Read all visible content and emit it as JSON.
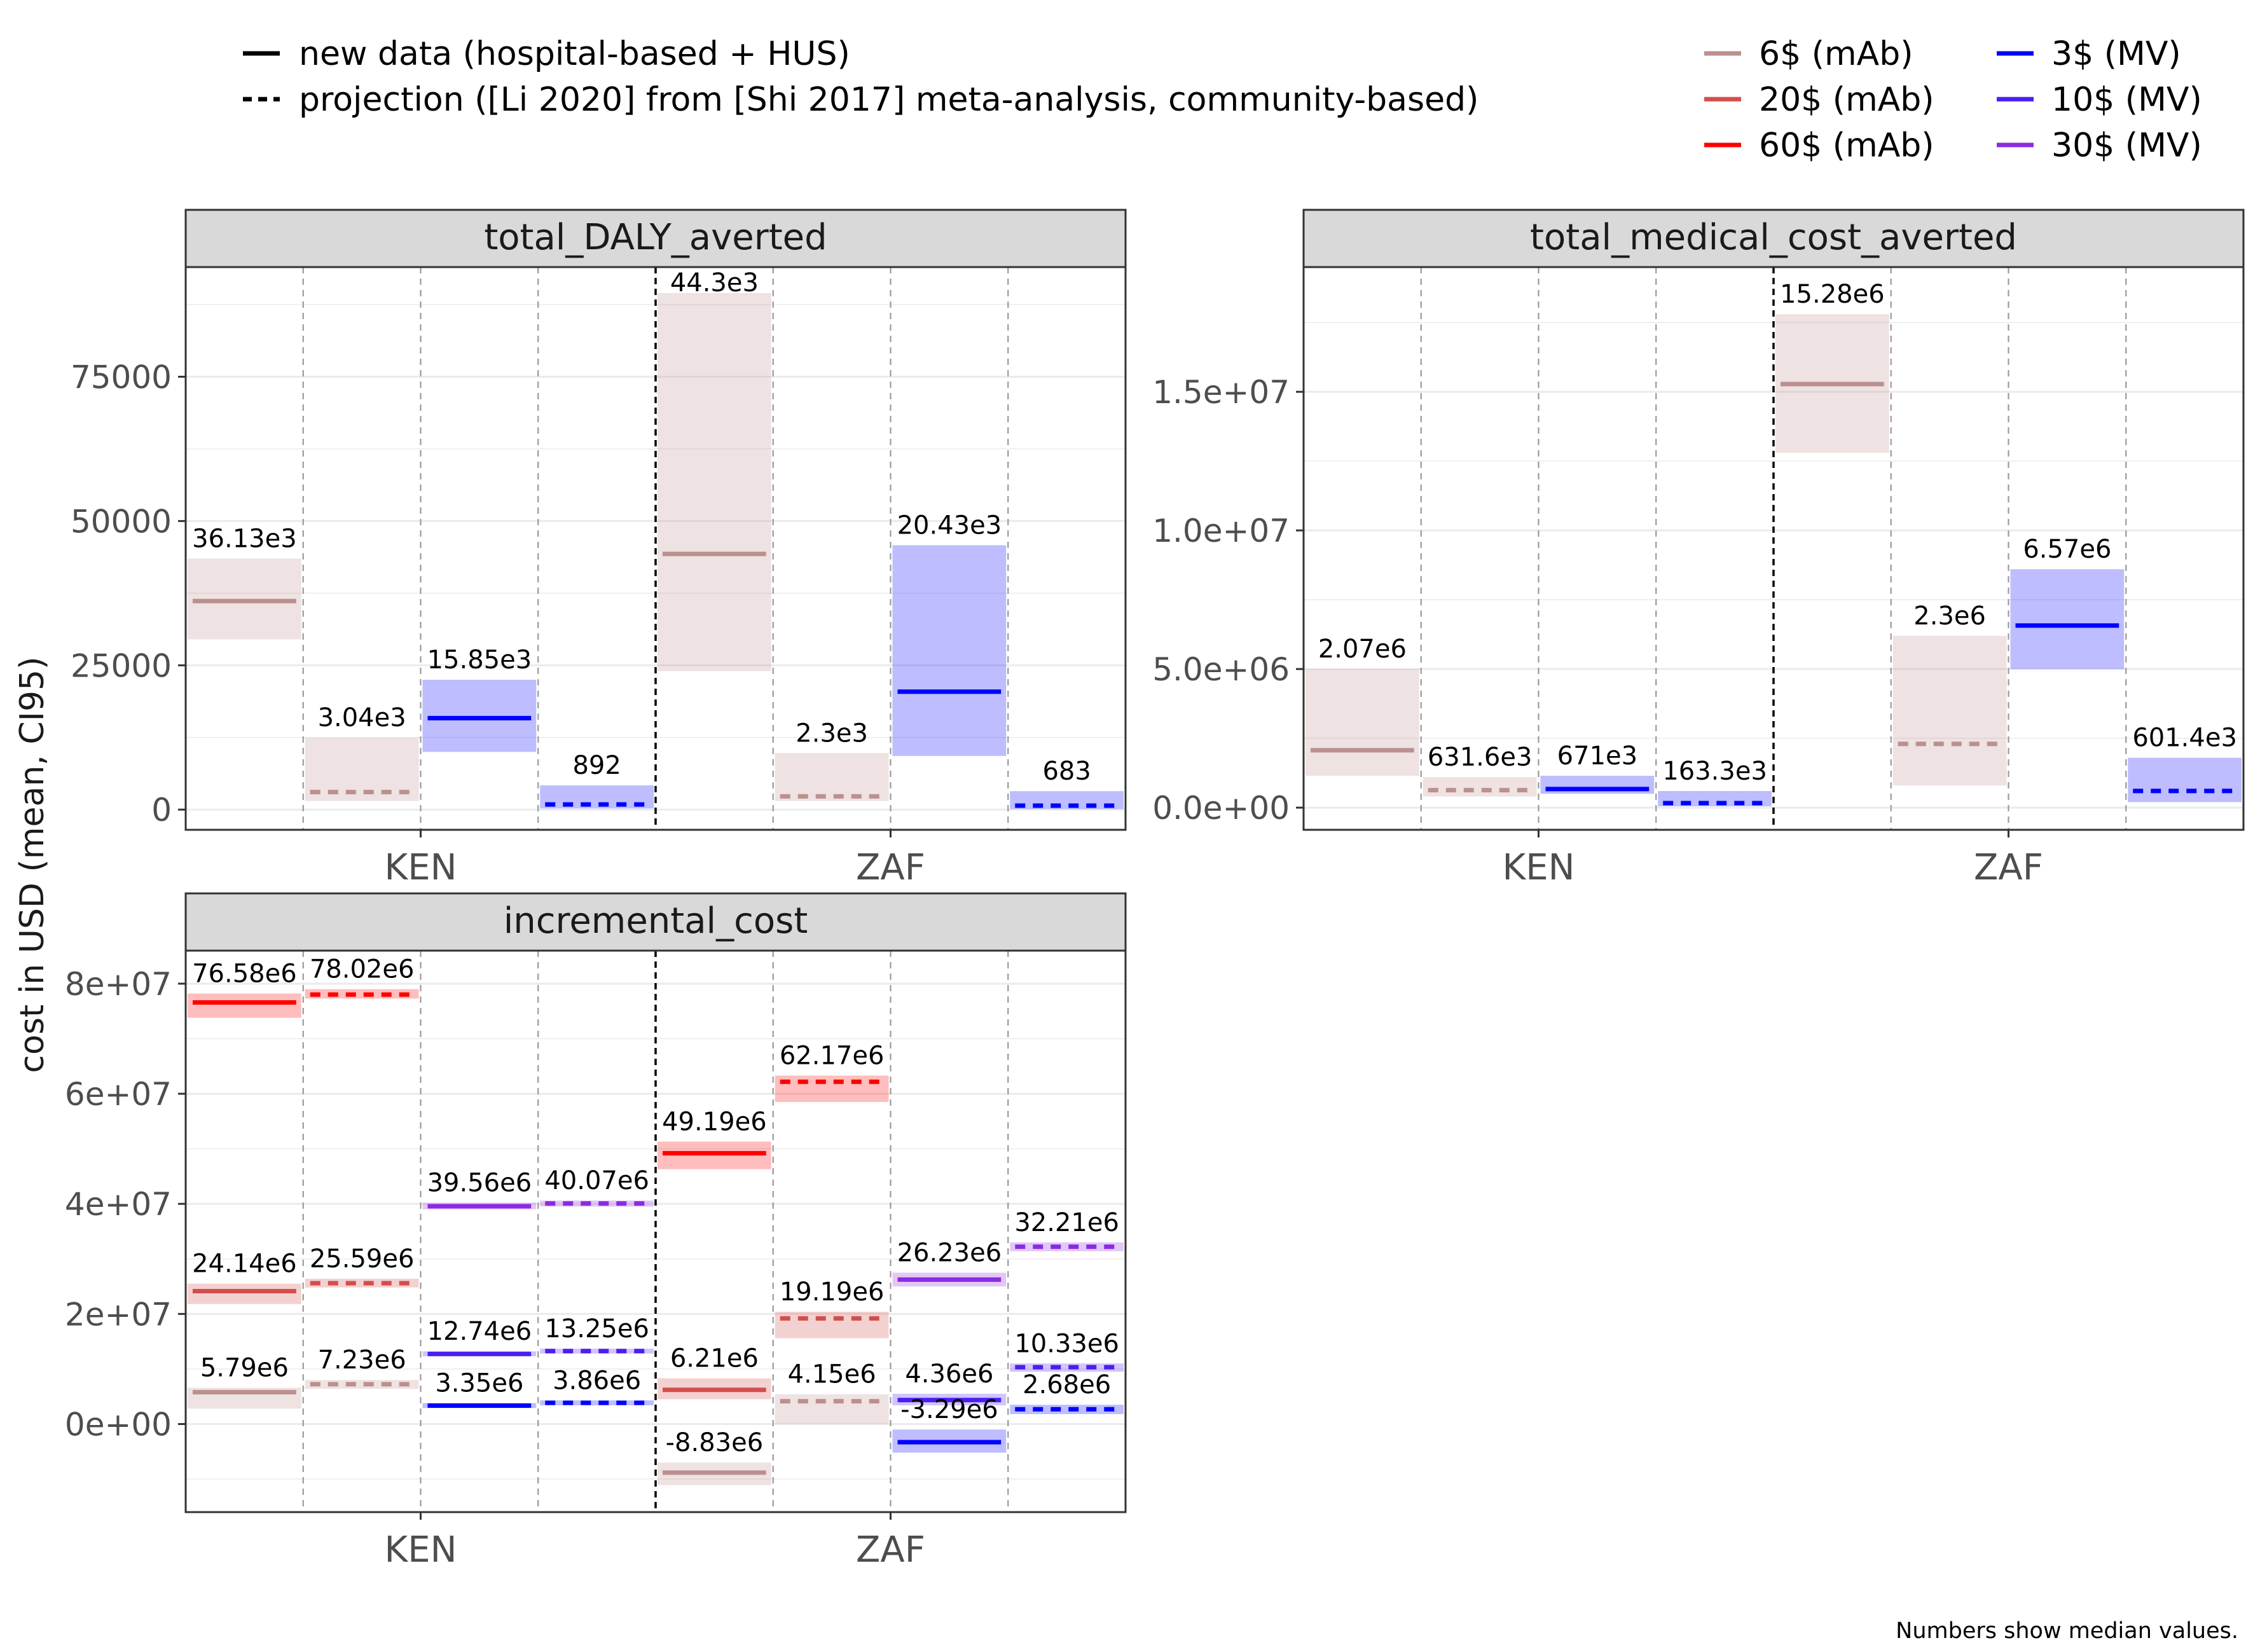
{
  "legend": {
    "linetypes": [
      {
        "label": "new data (hospital-based + HUS)",
        "dash": "solid"
      },
      {
        "label": "projection ([Li 2020] from [Shi 2017] meta-analysis, community-based)",
        "dash": "dashed"
      }
    ],
    "colors": [
      {
        "label": "6$ (mAb)",
        "color": "#bc8f8f"
      },
      {
        "label": "20$ (mAb)",
        "color": "#d44d4d"
      },
      {
        "label": "60$ (mAb)",
        "color": "#ff0000"
      },
      {
        "label": "3$ (MV)",
        "color": "#0000ff"
      },
      {
        "label": "10$ (MV)",
        "color": "#4a1ef0"
      },
      {
        "label": "30$ (MV)",
        "color": "#8a2be2"
      }
    ]
  },
  "ylabel": "cost in USD (mean, CI95)",
  "caption": "Numbers show median values.",
  "chart_data": [
    {
      "type": "crossbar",
      "title": "total_DALY_averted",
      "categories": [
        "KEN",
        "ZAF"
      ],
      "ylim": [
        -3500,
        94000
      ],
      "yticks": [
        0,
        25000,
        50000,
        75000
      ],
      "ytick_labels": [
        "0",
        "25000",
        "50000",
        "75000"
      ],
      "bars": [
        {
          "country": "KEN",
          "slot": 0,
          "color": "#bc8f8f",
          "dash": "solid",
          "mean": 36130,
          "lo": 29500,
          "hi": 43500,
          "label": "36.13e3"
        },
        {
          "country": "KEN",
          "slot": 1,
          "color": "#bc8f8f",
          "dash": "dashed",
          "mean": 3040,
          "lo": 1500,
          "hi": 12500,
          "label": "3.04e3"
        },
        {
          "country": "KEN",
          "slot": 2,
          "color": "#0000ff",
          "dash": "solid",
          "mean": 15850,
          "lo": 10000,
          "hi": 22500,
          "label": "15.85e3"
        },
        {
          "country": "KEN",
          "slot": 3,
          "color": "#0000ff",
          "dash": "dashed",
          "mean": 892,
          "lo": 200,
          "hi": 4200,
          "label": "892"
        },
        {
          "country": "ZAF",
          "slot": 0,
          "color": "#bc8f8f",
          "dash": "solid",
          "mean": 44300,
          "lo": 24000,
          "hi": 89500,
          "label": "44.3e3"
        },
        {
          "country": "ZAF",
          "slot": 1,
          "color": "#bc8f8f",
          "dash": "dashed",
          "mean": 2300,
          "lo": 1500,
          "hi": 9800,
          "label": "2.3e3"
        },
        {
          "country": "ZAF",
          "slot": 2,
          "color": "#0000ff",
          "dash": "solid",
          "mean": 20430,
          "lo": 9300,
          "hi": 45800,
          "label": "20.43e3"
        },
        {
          "country": "ZAF",
          "slot": 3,
          "color": "#0000ff",
          "dash": "dashed",
          "mean": 683,
          "lo": 100,
          "hi": 3200,
          "label": "683"
        }
      ]
    },
    {
      "type": "crossbar",
      "title": "total_medical_cost_averted",
      "categories": [
        "KEN",
        "ZAF"
      ],
      "ylim": [
        -800000,
        19500000
      ],
      "yticks": [
        0,
        5000000,
        10000000,
        15000000
      ],
      "ytick_labels": [
        "0.0e+00",
        "5.0e+06",
        "1.0e+07",
        "1.5e+07"
      ],
      "bars": [
        {
          "country": "KEN",
          "slot": 0,
          "color": "#bc8f8f",
          "dash": "solid",
          "mean": 2070000,
          "lo": 1150000,
          "hi": 5000000,
          "label": "2.07e6"
        },
        {
          "country": "KEN",
          "slot": 1,
          "color": "#bc8f8f",
          "dash": "dashed",
          "mean": 631600,
          "lo": 400000,
          "hi": 1100000,
          "label": "631.6e3"
        },
        {
          "country": "KEN",
          "slot": 2,
          "color": "#0000ff",
          "dash": "solid",
          "mean": 671000,
          "lo": 500000,
          "hi": 1150000,
          "label": "671e3"
        },
        {
          "country": "KEN",
          "slot": 3,
          "color": "#0000ff",
          "dash": "dashed",
          "mean": 163300,
          "lo": 50000,
          "hi": 600000,
          "label": "163.3e3"
        },
        {
          "country": "ZAF",
          "slot": 0,
          "color": "#bc8f8f",
          "dash": "solid",
          "mean": 15280000,
          "lo": 12800000,
          "hi": 17800000,
          "label": "15.28e6"
        },
        {
          "country": "ZAF",
          "slot": 1,
          "color": "#bc8f8f",
          "dash": "dashed",
          "mean": 2300000,
          "lo": 800000,
          "hi": 6200000,
          "label": "2.3e6"
        },
        {
          "country": "ZAF",
          "slot": 2,
          "color": "#0000ff",
          "dash": "solid",
          "mean": 6570000,
          "lo": 5000000,
          "hi": 8600000,
          "label": "6.57e6"
        },
        {
          "country": "ZAF",
          "slot": 3,
          "color": "#0000ff",
          "dash": "dashed",
          "mean": 601400,
          "lo": 200000,
          "hi": 1800000,
          "label": "601.4e3"
        }
      ]
    },
    {
      "type": "crossbar",
      "title": "incremental_cost",
      "categories": [
        "KEN",
        "ZAF"
      ],
      "ylim": [
        -16000000,
        86000000
      ],
      "yticks": [
        0,
        20000000,
        40000000,
        60000000,
        80000000
      ],
      "ytick_labels": [
        "0e+00",
        "2e+07",
        "4e+07",
        "6e+07",
        "8e+07"
      ],
      "bars": [
        {
          "country": "KEN",
          "slot": 0,
          "color": "#ff0000",
          "dash": "solid",
          "mean": 76580000,
          "lo": 73800000,
          "hi": 78200000,
          "label": "76.58e6"
        },
        {
          "country": "KEN",
          "slot": 1,
          "color": "#ff0000",
          "dash": "dashed",
          "mean": 78020000,
          "lo": 77300000,
          "hi": 79000000,
          "label": "78.02e6"
        },
        {
          "country": "KEN",
          "slot": 0,
          "color": "#d44d4d",
          "dash": "solid",
          "mean": 24140000,
          "lo": 21800000,
          "hi": 25500000,
          "label": "24.14e6"
        },
        {
          "country": "KEN",
          "slot": 1,
          "color": "#d44d4d",
          "dash": "dashed",
          "mean": 25590000,
          "lo": 24800000,
          "hi": 26400000,
          "label": "25.59e6"
        },
        {
          "country": "KEN",
          "slot": 0,
          "color": "#bc8f8f",
          "dash": "solid",
          "mean": 5790000,
          "lo": 2800000,
          "hi": 6600000,
          "label": "5.79e6"
        },
        {
          "country": "KEN",
          "slot": 1,
          "color": "#bc8f8f",
          "dash": "dashed",
          "mean": 7230000,
          "lo": 6400000,
          "hi": 8000000,
          "label": "7.23e6"
        },
        {
          "country": "KEN",
          "slot": 2,
          "color": "#8a2be2",
          "dash": "solid",
          "mean": 39560000,
          "lo": 39000000,
          "hi": 40200000,
          "label": "39.56e6"
        },
        {
          "country": "KEN",
          "slot": 3,
          "color": "#8a2be2",
          "dash": "dashed",
          "mean": 40070000,
          "lo": 39500000,
          "hi": 40600000,
          "label": "40.07e6"
        },
        {
          "country": "KEN",
          "slot": 2,
          "color": "#4a1ef0",
          "dash": "solid",
          "mean": 12740000,
          "lo": 12300000,
          "hi": 13200000,
          "label": "12.74e6"
        },
        {
          "country": "KEN",
          "slot": 3,
          "color": "#4a1ef0",
          "dash": "dashed",
          "mean": 13250000,
          "lo": 12800000,
          "hi": 13700000,
          "label": "13.25e6"
        },
        {
          "country": "KEN",
          "slot": 2,
          "color": "#0000ff",
          "dash": "solid",
          "mean": 3350000,
          "lo": 2900000,
          "hi": 3800000,
          "label": "3.35e6"
        },
        {
          "country": "KEN",
          "slot": 3,
          "color": "#0000ff",
          "dash": "dashed",
          "mean": 3860000,
          "lo": 3400000,
          "hi": 4300000,
          "label": "3.86e6"
        },
        {
          "country": "ZAF",
          "slot": 0,
          "color": "#ff0000",
          "dash": "solid",
          "mean": 49190000,
          "lo": 46300000,
          "hi": 51300000,
          "label": "49.19e6"
        },
        {
          "country": "ZAF",
          "slot": 1,
          "color": "#ff0000",
          "dash": "dashed",
          "mean": 62170000,
          "lo": 58500000,
          "hi": 63300000,
          "label": "62.17e6"
        },
        {
          "country": "ZAF",
          "slot": 0,
          "color": "#d44d4d",
          "dash": "solid",
          "mean": 6210000,
          "lo": 4500000,
          "hi": 8300000,
          "label": "6.21e6"
        },
        {
          "country": "ZAF",
          "slot": 1,
          "color": "#d44d4d",
          "dash": "dashed",
          "mean": 19190000,
          "lo": 15600000,
          "hi": 20400000,
          "label": "19.19e6"
        },
        {
          "country": "ZAF",
          "slot": 0,
          "color": "#bc8f8f",
          "dash": "solid",
          "mean": -8830000,
          "lo": -11100000,
          "hi": -7000000,
          "label": "-8.83e6"
        },
        {
          "country": "ZAF",
          "slot": 1,
          "color": "#bc8f8f",
          "dash": "dashed",
          "mean": 4150000,
          "lo": 0,
          "hi": 5400000,
          "label": "4.15e6"
        },
        {
          "country": "ZAF",
          "slot": 2,
          "color": "#8a2be2",
          "dash": "solid",
          "mean": 26230000,
          "lo": 25000000,
          "hi": 27500000,
          "label": "26.23e6"
        },
        {
          "country": "ZAF",
          "slot": 3,
          "color": "#8a2be2",
          "dash": "dashed",
          "mean": 32210000,
          "lo": 31400000,
          "hi": 33000000,
          "label": "32.21e6"
        },
        {
          "country": "ZAF",
          "slot": 2,
          "color": "#4a1ef0",
          "dash": "solid",
          "mean": 4360000,
          "lo": 3400000,
          "hi": 5500000,
          "label": "4.36e6"
        },
        {
          "country": "ZAF",
          "slot": 3,
          "color": "#4a1ef0",
          "dash": "dashed",
          "mean": 10330000,
          "lo": 9500000,
          "hi": 11000000,
          "label": "10.33e6"
        },
        {
          "country": "ZAF",
          "slot": 2,
          "color": "#0000ff",
          "dash": "solid",
          "mean": -3290000,
          "lo": -5200000,
          "hi": -1000000,
          "label": "-3.29e6"
        },
        {
          "country": "ZAF",
          "slot": 3,
          "color": "#0000ff",
          "dash": "dashed",
          "mean": 2680000,
          "lo": 1800000,
          "hi": 3500000,
          "label": "2.68e6"
        }
      ]
    }
  ]
}
